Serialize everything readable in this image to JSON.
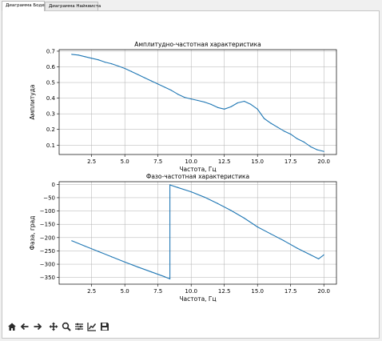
{
  "tabs": [
    {
      "label": "Диаграмма Боде",
      "active": true
    },
    {
      "label": "Диаграмма Найквиста",
      "active": false
    }
  ],
  "toolbar": {
    "icons": [
      "home-icon",
      "back-arrow-icon",
      "forward-arrow-icon",
      "pan-icon",
      "zoom-icon",
      "configure-subplots-icon",
      "edit-axes-icon",
      "save-icon"
    ]
  },
  "colors": {
    "line": "#1f77b4",
    "grid": "#b0b0b0"
  },
  "chart_data": [
    {
      "type": "line",
      "title": "Амплитудно-частотная характеристика",
      "xlabel": "Частота, Гц",
      "ylabel": "Амплитуда",
      "xlim": [
        0.05,
        20.95
      ],
      "ylim": [
        0.04,
        0.71
      ],
      "xticks": [
        2.5,
        5.0,
        7.5,
        10.0,
        12.5,
        15.0,
        17.5,
        20.0
      ],
      "xtick_labels": [
        "2.5",
        "5.0",
        "7.5",
        "10.0",
        "12.5",
        "15.0",
        "17.5",
        "20.0"
      ],
      "yticks": [
        0.1,
        0.2,
        0.3,
        0.4,
        0.5,
        0.6,
        0.7
      ],
      "ytick_labels": [
        "0.1",
        "0.2",
        "0.3",
        "0.4",
        "0.5",
        "0.6",
        "0.7"
      ],
      "grid": true,
      "x": [
        1.0,
        1.5,
        2.0,
        2.5,
        3.0,
        3.5,
        4.0,
        4.5,
        5.0,
        5.5,
        6.0,
        6.5,
        7.0,
        7.5,
        8.0,
        8.5,
        9.0,
        9.5,
        10.0,
        10.5,
        11.0,
        11.5,
        12.0,
        12.5,
        13.0,
        13.5,
        14.0,
        14.5,
        15.0,
        15.5,
        16.0,
        16.5,
        17.0,
        17.5,
        18.0,
        18.5,
        19.0,
        19.5,
        20.0
      ],
      "y": [
        0.68,
        0.675,
        0.665,
        0.655,
        0.645,
        0.63,
        0.62,
        0.605,
        0.59,
        0.57,
        0.55,
        0.53,
        0.51,
        0.49,
        0.47,
        0.45,
        0.425,
        0.405,
        0.395,
        0.385,
        0.375,
        0.36,
        0.34,
        0.33,
        0.345,
        0.37,
        0.38,
        0.36,
        0.33,
        0.27,
        0.24,
        0.215,
        0.19,
        0.17,
        0.14,
        0.12,
        0.09,
        0.07,
        0.06
      ]
    },
    {
      "type": "line",
      "title": "Фазо-частотная характеристика",
      "xlabel": "Частота, Гц",
      "ylabel": "Фаза, град",
      "xlim": [
        0.05,
        20.95
      ],
      "ylim": [
        -375,
        10
      ],
      "xticks": [
        2.5,
        5.0,
        7.5,
        10.0,
        12.5,
        15.0,
        17.5,
        20.0
      ],
      "xtick_labels": [
        "2.5",
        "5.0",
        "7.5",
        "10.0",
        "12.5",
        "15.0",
        "17.5",
        "20.0"
      ],
      "yticks": [
        0,
        -50,
        -100,
        -150,
        -200,
        -250,
        -300,
        -350
      ],
      "ytick_labels": [
        "0",
        "−50",
        "−100",
        "−150",
        "−200",
        "−250",
        "−300",
        "−350"
      ],
      "grid": true,
      "x": [
        1.0,
        2.0,
        3.0,
        4.0,
        5.0,
        6.0,
        7.0,
        8.0,
        8.4,
        8.4,
        9.0,
        10.0,
        11.0,
        12.0,
        13.0,
        14.0,
        15.0,
        16.0,
        17.0,
        18.0,
        19.0,
        19.6,
        20.0
      ],
      "y": [
        -212,
        -232,
        -252,
        -272,
        -292,
        -311,
        -329,
        -347,
        -355,
        -2,
        -12,
        -28,
        -48,
        -72,
        -98,
        -127,
        -160,
        -186,
        -212,
        -240,
        -265,
        -280,
        -265
      ]
    }
  ]
}
